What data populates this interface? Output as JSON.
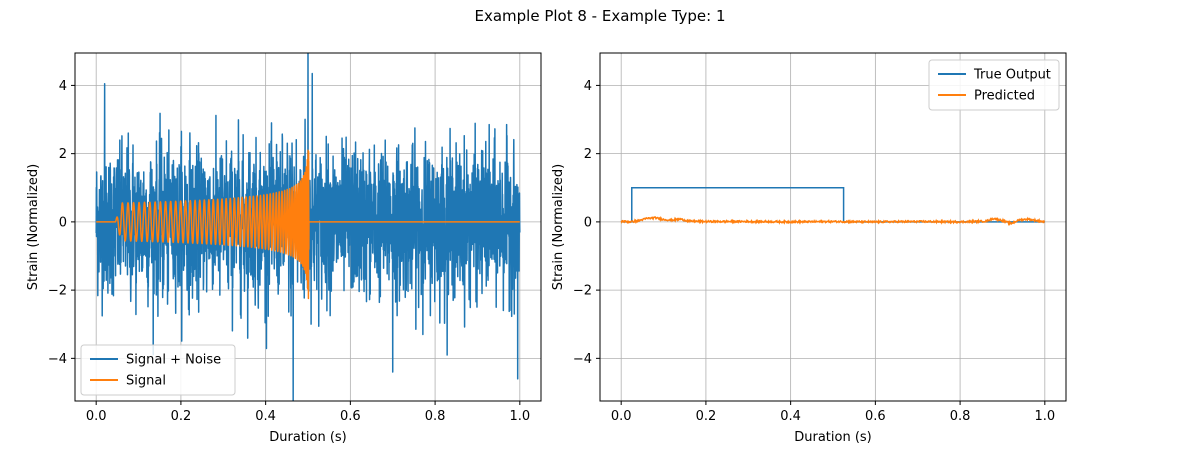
{
  "figure": {
    "title": "Example Plot 8 - Example Type: 1"
  },
  "colors": {
    "blue": "#1f77b4",
    "orange": "#ff7f0e",
    "grid": "#b0b0b0",
    "axes": "#000000"
  },
  "chart_data": [
    {
      "type": "line",
      "xlabel": "Duration (s)",
      "ylabel": "Strain (Normalized)",
      "xlim": [
        -0.05,
        1.05
      ],
      "ylim": [
        -5.25,
        4.95
      ],
      "xticks": [
        0.0,
        0.2,
        0.4,
        0.6,
        0.8,
        1.0
      ],
      "xtick_labels": [
        "0.0",
        "0.2",
        "0.4",
        "0.6",
        "0.8",
        "1.0"
      ],
      "yticks": [
        -4,
        -2,
        0,
        2,
        4
      ],
      "ytick_labels": [
        "−4",
        "−2",
        "0",
        "2",
        "4"
      ],
      "grid": true,
      "legend_position": "lower-left",
      "series": [
        {
          "name": "Signal + Noise",
          "color": "#1f77b4",
          "kind": "noise_band",
          "x_start": 0.0,
          "x_end": 1.0,
          "typical_amplitude": 2.6,
          "extremes": [
            {
              "x": 0.02,
              "y": 4.05
            },
            {
              "x": 0.5,
              "y": 4.5
            },
            {
              "x": 0.51,
              "y": 4.35
            },
            {
              "x": 0.465,
              "y": -4.7
            },
            {
              "x": 0.995,
              "y": -4.6
            },
            {
              "x": 0.7,
              "y": -4.4
            }
          ]
        },
        {
          "name": "Signal",
          "color": "#ff7f0e",
          "kind": "chirp",
          "flat_until": 0.035,
          "onset": 0.045,
          "merger": 0.502,
          "end": 1.0,
          "amplitude_start": 0.55,
          "amplitude_peak": 2.1,
          "amplitude_min": -2.35
        }
      ]
    },
    {
      "type": "line",
      "xlabel": "Duration (s)",
      "ylabel": "Strain (Normalized)",
      "xlim": [
        -0.05,
        1.05
      ],
      "ylim": [
        -5.25,
        4.95
      ],
      "xticks": [
        0.0,
        0.2,
        0.4,
        0.6,
        0.8,
        1.0
      ],
      "xtick_labels": [
        "0.0",
        "0.2",
        "0.4",
        "0.6",
        "0.8",
        "1.0"
      ],
      "yticks": [
        -4,
        -2,
        0,
        2,
        4
      ],
      "ytick_labels": [
        "−4",
        "−2",
        "0",
        "2",
        "4"
      ],
      "grid": true,
      "legend_position": "top-right",
      "series": [
        {
          "name": "True Output",
          "color": "#1f77b4",
          "kind": "step",
          "points": [
            [
              0.0,
              0.0
            ],
            [
              0.025,
              0.0
            ],
            [
              0.025,
              1.0
            ],
            [
              0.525,
              1.0
            ],
            [
              0.525,
              0.0
            ],
            [
              1.0,
              0.0
            ]
          ]
        },
        {
          "name": "Predicted",
          "color": "#ff7f0e",
          "kind": "near_zero",
          "values": [
            [
              0.0,
              0.02
            ],
            [
              0.02,
              0.0
            ],
            [
              0.04,
              0.03
            ],
            [
              0.06,
              0.1
            ],
            [
              0.08,
              0.12
            ],
            [
              0.1,
              0.07
            ],
            [
              0.12,
              0.05
            ],
            [
              0.14,
              0.08
            ],
            [
              0.16,
              0.02
            ],
            [
              0.2,
              0.01
            ],
            [
              0.3,
              0.01
            ],
            [
              0.4,
              0.0
            ],
            [
              0.5,
              0.01
            ],
            [
              0.6,
              0.0
            ],
            [
              0.7,
              0.01
            ],
            [
              0.8,
              0.0
            ],
            [
              0.86,
              0.02
            ],
            [
              0.88,
              0.1
            ],
            [
              0.9,
              0.04
            ],
            [
              0.92,
              -0.05
            ],
            [
              0.94,
              0.06
            ],
            [
              0.96,
              0.08
            ],
            [
              0.98,
              0.04
            ],
            [
              1.0,
              0.0
            ]
          ]
        }
      ]
    }
  ]
}
